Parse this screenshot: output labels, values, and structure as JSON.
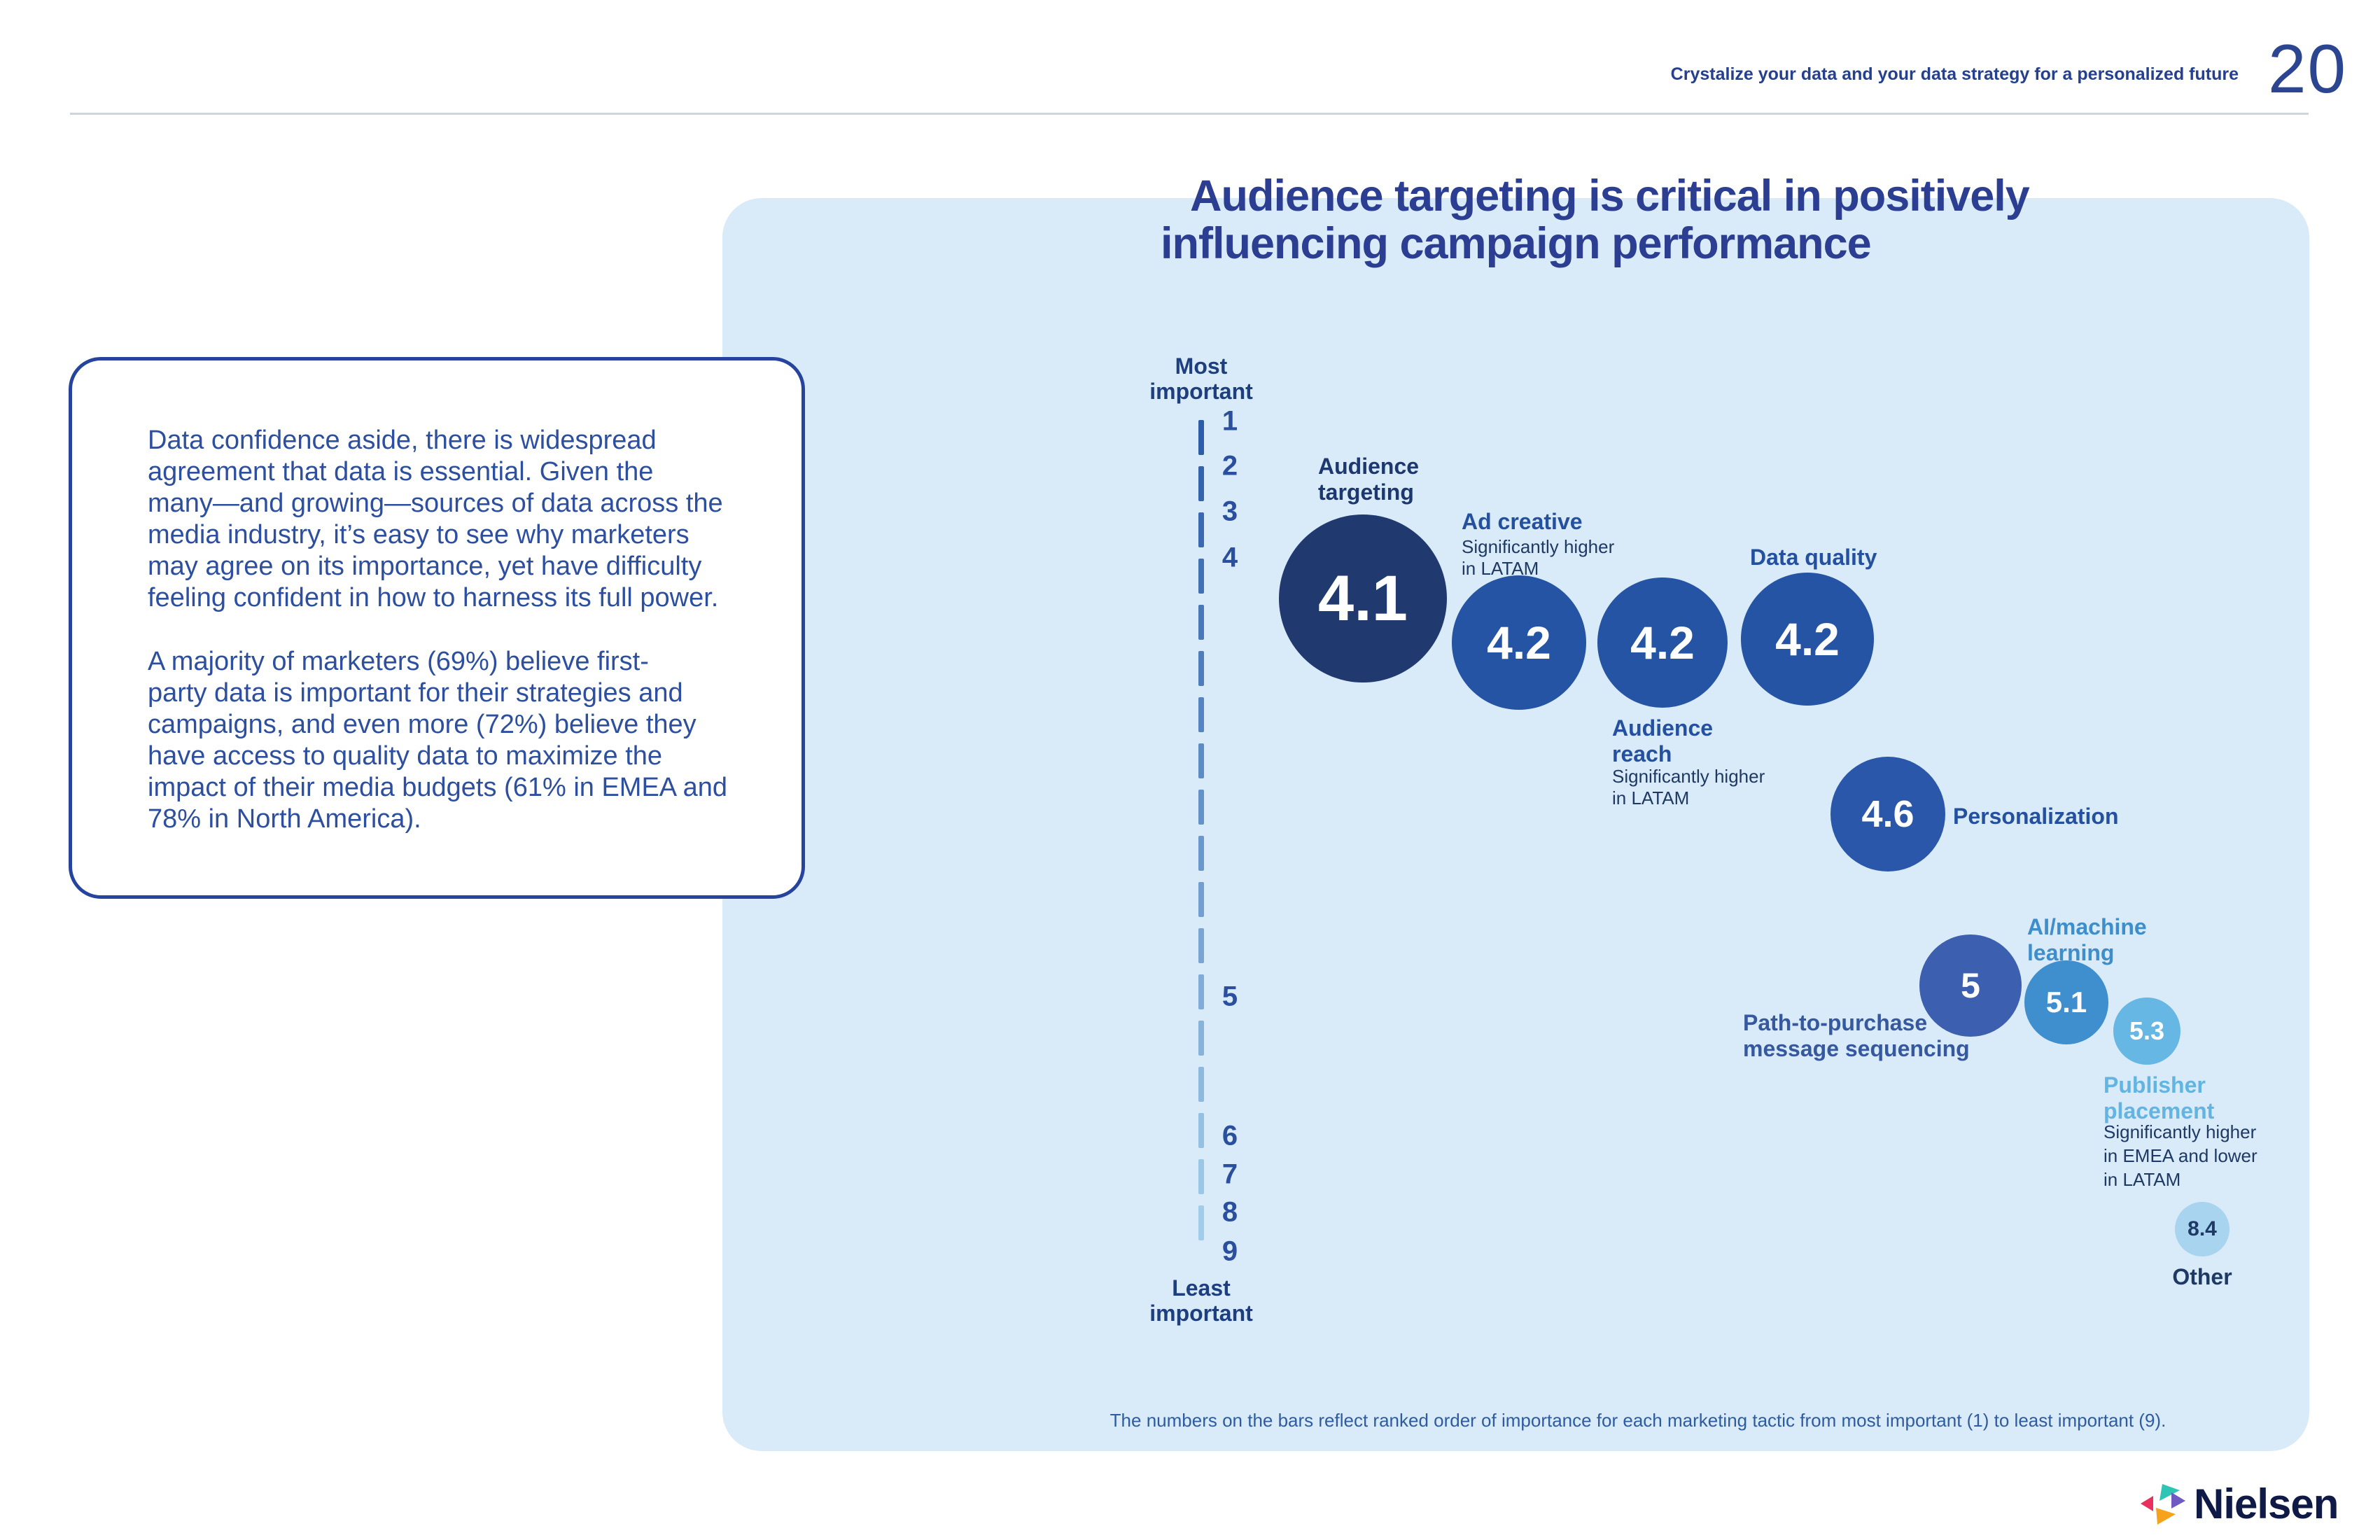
{
  "header": {
    "tagline": "Crystalize your data and your data strategy for a personalized future",
    "page_number": "20"
  },
  "insight_card": {
    "paragraph1": [
      "Data confidence aside, there is widespread",
      "agreement that data is essential. Given the",
      "many—and growing—sources of data across the",
      "media industry, it’s easy to see why marketers",
      "may agree on its importance, yet have difficulty",
      "feeling confident in how to harness its full power."
    ],
    "paragraph2": [
      "A majority of marketers (69%) believe first-",
      "party data is important for their strategies and",
      "campaigns, and even more (72%) believe they",
      "have access to quality data to maximize the",
      "impact of their media budgets (61% in EMEA and",
      "78% in North America)."
    ]
  },
  "chart_data": {
    "type": "bubble",
    "title_lines": [
      "Audience targeting is critical in positively",
      "influencing campaign performance"
    ],
    "title": "Audience targeting is critical in positively influencing campaign performance",
    "axis": {
      "top_label_lines": [
        "Most",
        "important"
      ],
      "bottom_label_lines": [
        "Least",
        "important"
      ],
      "ticks": [
        "1",
        "2",
        "3",
        "4",
        "5",
        "6",
        "7",
        "8",
        "9"
      ],
      "range": [
        1,
        9
      ],
      "orientation": "vertical"
    },
    "points": [
      {
        "id": "audience-targeting",
        "label": "Audience targeting",
        "label_lines": [
          "Audience",
          "targeting"
        ],
        "value": "4.1",
        "note_lines": [],
        "color": "#203a70",
        "label_color": "#1d386e",
        "value_color": "#ffffff"
      },
      {
        "id": "ad-creative",
        "label": "Ad creative",
        "label_lines": [
          "Ad creative"
        ],
        "value": "4.2",
        "note_lines": [
          "Significantly higher",
          "in LATAM"
        ],
        "color": "#2454a3",
        "label_color": "#2450a0",
        "value_color": "#ffffff"
      },
      {
        "id": "audience-reach",
        "label": "Audience reach",
        "label_lines": [
          "Audience",
          "reach"
        ],
        "value": "4.2",
        "note_lines": [
          "Significantly higher",
          "in LATAM"
        ],
        "color": "#2454a3",
        "label_color": "#2450a0",
        "value_color": "#ffffff"
      },
      {
        "id": "data-quality",
        "label": "Data quality",
        "label_lines": [
          "Data quality"
        ],
        "value": "4.2",
        "note_lines": [],
        "color": "#2454a3",
        "label_color": "#2450a0",
        "value_color": "#ffffff"
      },
      {
        "id": "personalization",
        "label": "Personalization",
        "label_lines": [
          "Personalization"
        ],
        "value": "4.6",
        "note_lines": [],
        "color": "#2a57a9",
        "label_color": "#2450a0",
        "value_color": "#ffffff"
      },
      {
        "id": "path-to-purchase",
        "label": "Path-to-purchase message sequencing",
        "label_lines": [
          "Path-to-purchase",
          "message sequencing"
        ],
        "value": "5",
        "note_lines": [],
        "color": "#3c60af",
        "label_color": "#35589f",
        "value_color": "#ffffff"
      },
      {
        "id": "ai-ml",
        "label": "AI/machine learning",
        "label_lines": [
          "AI/machine",
          "learning"
        ],
        "value": "5.1",
        "note_lines": [],
        "color": "#3f8fce",
        "label_color": "#3d8ecb",
        "value_color": "#ffffff"
      },
      {
        "id": "publisher-placement",
        "label": "Publisher placement",
        "label_lines": [
          "Publisher",
          "placement"
        ],
        "value": "5.3",
        "note_lines": [
          "Significantly higher",
          "in EMEA and lower",
          "in LATAM"
        ],
        "color": "#67b7e4",
        "label_color": "#62b5e3",
        "value_color": "#ffffff"
      },
      {
        "id": "other",
        "label": "Other",
        "label_lines": [
          "Other"
        ],
        "value": "8.4",
        "note_lines": [],
        "color": "#a9d4ef",
        "label_color": "#1e3a64",
        "value_color": "#1e3a64"
      }
    ],
    "footnote": "The numbers on the bars reflect ranked order of importance for each marketing tactic from most important (1) to least important (9)."
  },
  "logo": {
    "text": "Nielsen"
  },
  "colors": {
    "panel": "#d9eaf8",
    "title": "#2b3e92",
    "body_text": "#2d4f9f",
    "card_border": "#26449e",
    "axis_dash_top": "#2d5ca9",
    "axis_dash_bottom": "#a9d4ee",
    "tick": "#2a4f9f",
    "note_text": "#1e3a64",
    "logo_pink": "#e8315f",
    "logo_teal": "#2fc5b4",
    "logo_orange": "#f6a21d",
    "logo_purple": "#7059c1"
  }
}
